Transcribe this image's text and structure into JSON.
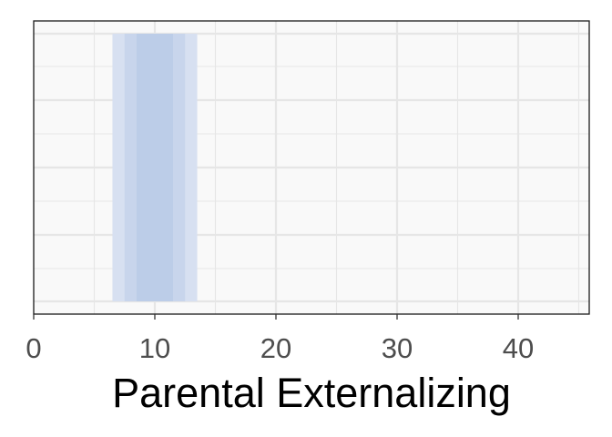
{
  "chart_data": {
    "type": "interval",
    "title": "",
    "xlabel": "Parental Externalizing",
    "ylabel": "",
    "xlim": [
      0,
      46
    ],
    "x_ticks": [
      0,
      10,
      20,
      30,
      40
    ],
    "x_tick_labels": [
      "0",
      "10",
      "20",
      "30",
      "40"
    ],
    "grid": true,
    "legend": "none",
    "bands": [
      {
        "name": "outer",
        "x_start": 6.5,
        "x_end": 13.5
      },
      {
        "name": "middle",
        "x_start": 7.5,
        "x_end": 12.5
      },
      {
        "name": "inner",
        "x_start": 8.5,
        "x_end": 11.5
      }
    ],
    "colors": {
      "panel_background": "#f9f9f9",
      "grid": "#e6e6e6",
      "band_outer": "#d7e0f1",
      "band_middle": "#c8d5ec",
      "band_inner": "#bccde8"
    }
  }
}
